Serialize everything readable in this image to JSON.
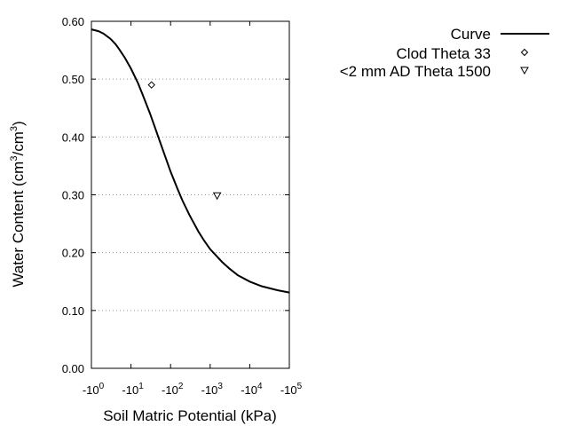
{
  "chart_data": {
    "type": "scatter",
    "xlabel": "Soil Matric Potential (kPa)",
    "ylabel_parts": {
      "base": "Water Content (cm",
      "sup1": "3",
      "mid": "/cm",
      "sup2": "3",
      "end": ")"
    },
    "x_scale": "log",
    "x_reversed_negative": true,
    "xlim": [
      1,
      100000
    ],
    "ylim": [
      0,
      0.6
    ],
    "x_ticks": [
      {
        "value": 1,
        "prefix": "-10",
        "exp": "0"
      },
      {
        "value": 10,
        "prefix": "-10",
        "exp": "1"
      },
      {
        "value": 100,
        "prefix": "-10",
        "exp": "2"
      },
      {
        "value": 1000,
        "prefix": "-10",
        "exp": "3"
      },
      {
        "value": 10000,
        "prefix": "-10",
        "exp": "4"
      },
      {
        "value": 100000,
        "prefix": "-10",
        "exp": "5"
      }
    ],
    "y_ticks": [
      {
        "value": 0.0,
        "label": "0.00"
      },
      {
        "value": 0.1,
        "label": "0.10"
      },
      {
        "value": 0.2,
        "label": "0.20"
      },
      {
        "value": 0.3,
        "label": "0.30"
      },
      {
        "value": 0.4,
        "label": "0.40"
      },
      {
        "value": 0.5,
        "label": "0.50"
      },
      {
        "value": 0.6,
        "label": "0.60"
      }
    ],
    "grid": "y-dotted",
    "legend_position": "top-right",
    "series": [
      {
        "name": "Curve",
        "kind": "line",
        "color": "#000000",
        "x": [
          1,
          1.5,
          2,
          3,
          4,
          5,
          7,
          10,
          15,
          20,
          30,
          40,
          50,
          70,
          100,
          150,
          200,
          300,
          500,
          700,
          1000,
          2000,
          3000,
          5000,
          10000,
          20000,
          50000,
          100000
        ],
        "y": [
          0.586,
          0.583,
          0.579,
          0.57,
          0.561,
          0.552,
          0.537,
          0.518,
          0.493,
          0.472,
          0.441,
          0.417,
          0.398,
          0.37,
          0.34,
          0.31,
          0.29,
          0.265,
          0.237,
          0.221,
          0.206,
          0.184,
          0.173,
          0.161,
          0.15,
          0.142,
          0.135,
          0.131
        ]
      },
      {
        "name": "Clod Theta 33",
        "kind": "marker",
        "marker": "diamond",
        "x": [
          33
        ],
        "y": [
          0.49
        ]
      },
      {
        "name": "<2 mm AD Theta 1500",
        "kind": "marker",
        "marker": "triangle-down",
        "x": [
          1500
        ],
        "y": [
          0.298
        ]
      }
    ]
  }
}
